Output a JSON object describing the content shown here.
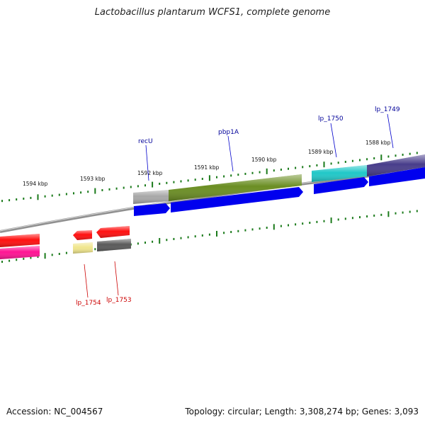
{
  "title": "Lactobacillus plantarum WCFS1, complete genome",
  "footer": {
    "accession": "Accession: NC_004567",
    "summary": "Topology: circular; Length: 3,308,274 bp; Genes: 3,093"
  },
  "colors": {
    "backbone": "#808080",
    "tick": "#1a7a1a",
    "cds": "#0000ee",
    "label_forward": "#000099",
    "label_reverse": "#cc0000"
  },
  "scale_labels": [
    "1594 kbp",
    "1593 kbp",
    "1592 kbp",
    "1591 kbp",
    "1590 kbp",
    "1589 kbp",
    "1588 kbp"
  ],
  "forward_features": [
    {
      "name": "recU",
      "color": "#a8a8a8"
    },
    {
      "name": "pbp1A",
      "color": "#6b8e23"
    },
    {
      "name": "lp_1750",
      "color": "#20c8c8"
    },
    {
      "name": "lp_1749",
      "color": "#483d8b"
    }
  ],
  "reverse_features": [
    {
      "name": "",
      "color": "#ff1010"
    },
    {
      "name": "",
      "color": "#ff1493"
    },
    {
      "name": "lp_1754",
      "color": "#ff1010"
    },
    {
      "name": "lp_1754",
      "color": "#f0e68c"
    },
    {
      "name": "lp_1753",
      "color": "#ff1010"
    },
    {
      "name": "lp_1753",
      "color": "#5a5a5a"
    }
  ],
  "gene_labels": {
    "forward": [
      "recU",
      "pbp1A",
      "lp_1750",
      "lp_1749"
    ],
    "reverse": [
      "lp_1754",
      "lp_1753"
    ]
  }
}
